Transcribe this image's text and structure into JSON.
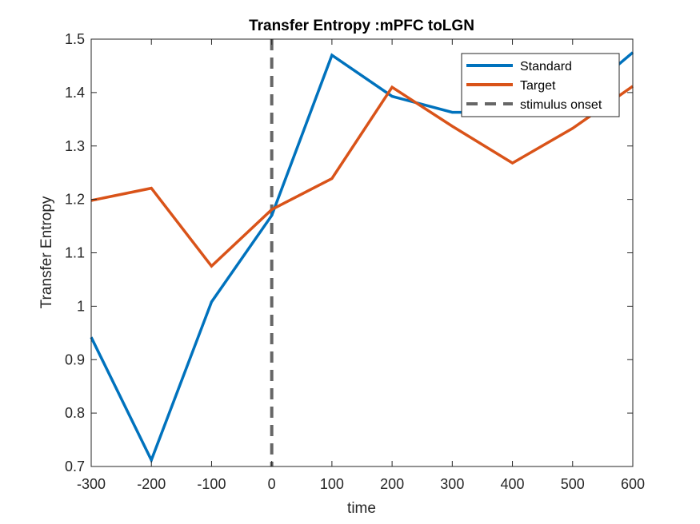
{
  "chart_data": {
    "type": "line",
    "title": "Transfer Entropy :mPFC toLGN",
    "xlabel": "time",
    "ylabel": "Transfer Entropy",
    "xlim": [
      -300,
      600
    ],
    "ylim": [
      0.7,
      1.5
    ],
    "xticks": [
      -300,
      -200,
      -100,
      0,
      100,
      200,
      300,
      400,
      500,
      600
    ],
    "xtick_labels": [
      "-300",
      "-200",
      "-100",
      "0",
      "100",
      "200",
      "300",
      "400",
      "500",
      "600"
    ],
    "yticks": [
      0.7,
      0.8,
      0.9,
      1.0,
      1.1,
      1.2,
      1.3,
      1.4,
      1.5
    ],
    "ytick_labels": [
      "0.7",
      "0.8",
      "0.9",
      "1",
      "1.1",
      "1.2",
      "1.3",
      "1.4",
      "1.5"
    ],
    "grid": false,
    "legend_position": "top-right",
    "x": [
      -300,
      -200,
      -100,
      0,
      100,
      200,
      300,
      400,
      500,
      600
    ],
    "series": [
      {
        "name": "Standard",
        "color": "#0072BD",
        "style": "solid",
        "values": [
          0.942,
          0.712,
          1.008,
          1.17,
          1.47,
          1.393,
          1.363,
          1.363,
          1.38,
          1.475
        ]
      },
      {
        "name": "Target",
        "color": "#D95319",
        "style": "solid",
        "values": [
          1.198,
          1.221,
          1.075,
          1.181,
          1.239,
          1.41,
          1.337,
          1.268,
          1.333,
          1.412
        ]
      }
    ],
    "reference_lines": [
      {
        "name": "stimulus onset",
        "orientation": "vertical",
        "x": 0,
        "color": "#666666",
        "style": "dashed"
      }
    ]
  }
}
